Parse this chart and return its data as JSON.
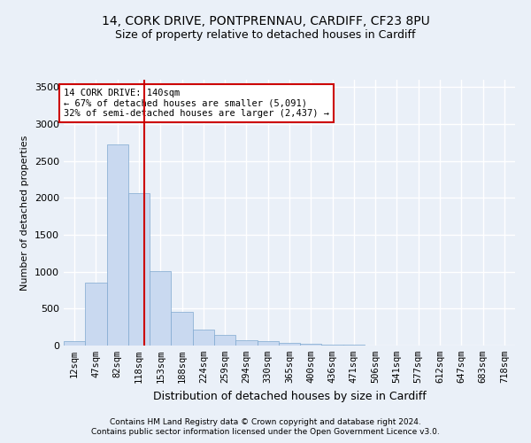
{
  "title1": "14, CORK DRIVE, PONTPRENNAU, CARDIFF, CF23 8PU",
  "title2": "Size of property relative to detached houses in Cardiff",
  "xlabel": "Distribution of detached houses by size in Cardiff",
  "ylabel": "Number of detached properties",
  "bar_labels": [
    "12sqm",
    "47sqm",
    "82sqm",
    "118sqm",
    "153sqm",
    "188sqm",
    "224sqm",
    "259sqm",
    "294sqm",
    "330sqm",
    "365sqm",
    "400sqm",
    "436sqm",
    "471sqm",
    "506sqm",
    "541sqm",
    "577sqm",
    "612sqm",
    "647sqm",
    "683sqm",
    "718sqm"
  ],
  "bar_values": [
    60,
    850,
    2720,
    2060,
    1010,
    460,
    220,
    140,
    70,
    55,
    35,
    25,
    15,
    8,
    5,
    3,
    2,
    1,
    1,
    0,
    0
  ],
  "bar_color": "#c9d9f0",
  "bar_edge_color": "#7fa8d0",
  "ylim": [
    0,
    3600
  ],
  "yticks": [
    0,
    500,
    1000,
    1500,
    2000,
    2500,
    3000,
    3500
  ],
  "red_line_x": 3.73,
  "red_line_color": "#cc0000",
  "annotation_text": "14 CORK DRIVE: 140sqm\n← 67% of detached houses are smaller (5,091)\n32% of semi-detached houses are larger (2,437) →",
  "annotation_box_color": "#ffffff",
  "annotation_box_edge": "#cc0000",
  "footer1": "Contains HM Land Registry data © Crown copyright and database right 2024.",
  "footer2": "Contains public sector information licensed under the Open Government Licence v3.0.",
  "bg_color": "#eaf0f8",
  "grid_color": "#ffffff",
  "title1_fontsize": 10,
  "title2_fontsize": 9,
  "ylabel_fontsize": 8,
  "xlabel_fontsize": 9,
  "tick_fontsize": 7.5,
  "footer_fontsize": 6.5
}
